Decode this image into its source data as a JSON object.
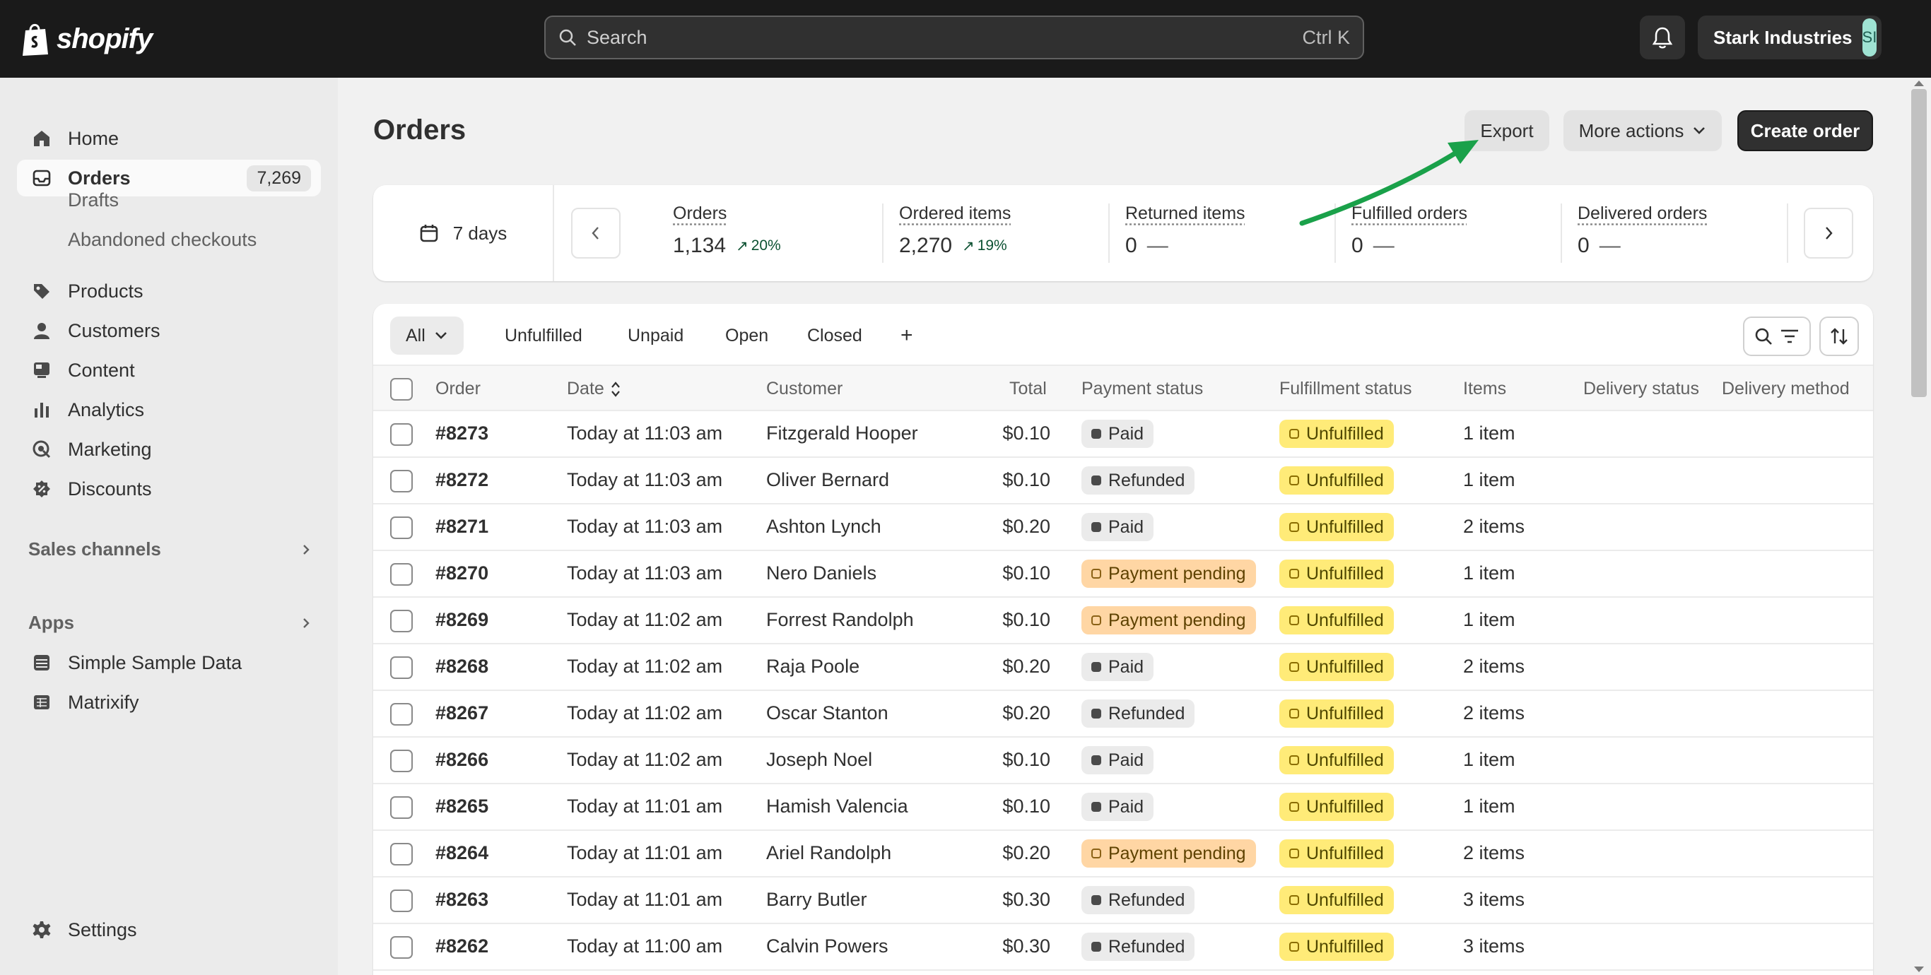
{
  "topbar": {
    "logo_text": "shopify",
    "search_placeholder": "Search",
    "search_shortcut": "Ctrl K",
    "store_name": "Stark Industries",
    "store_initials": "SI"
  },
  "sidebar": {
    "items": [
      {
        "label": "Home",
        "icon": "home-icon"
      },
      {
        "label": "Orders",
        "icon": "inbox-icon",
        "count": "7,269"
      },
      {
        "label": "Products",
        "icon": "tag-icon"
      },
      {
        "label": "Customers",
        "icon": "person-icon"
      },
      {
        "label": "Content",
        "icon": "image-icon"
      },
      {
        "label": "Analytics",
        "icon": "bar-chart-icon"
      },
      {
        "label": "Marketing",
        "icon": "target-icon"
      },
      {
        "label": "Discounts",
        "icon": "discount-icon"
      }
    ],
    "sub_items": [
      "Drafts",
      "Abandoned checkouts"
    ],
    "sales_channels_label": "Sales channels",
    "apps_label": "Apps",
    "apps": [
      {
        "label": "Simple Sample Data",
        "icon": "database-icon"
      },
      {
        "label": "Matrixify",
        "icon": "spreadsheet-icon"
      }
    ],
    "settings_label": "Settings"
  },
  "header": {
    "title": "Orders",
    "export_label": "Export",
    "more_actions_label": "More actions",
    "create_order_label": "Create order"
  },
  "stats": {
    "period": "7 days",
    "items": [
      {
        "title": "Orders",
        "value": "1,134",
        "trend": "20%"
      },
      {
        "title": "Ordered items",
        "value": "2,270",
        "trend": "19%"
      },
      {
        "title": "Returned items",
        "value": "0",
        "trend": "—"
      },
      {
        "title": "Fulfilled orders",
        "value": "0",
        "trend": "—"
      },
      {
        "title": "Delivered orders",
        "value": "0",
        "trend": "—"
      }
    ]
  },
  "filters": {
    "tabs": [
      "All",
      "Unfulfilled",
      "Unpaid",
      "Open",
      "Closed"
    ],
    "add": "+"
  },
  "table": {
    "columns": [
      "Order",
      "Date",
      "Customer",
      "Total",
      "Payment status",
      "Fulfillment status",
      "Items",
      "Delivery status",
      "Delivery method"
    ],
    "rows": [
      {
        "order": "#8273",
        "date": "Today at 11:03 am",
        "customer": "Fitzgerald Hooper",
        "total": "$0.10",
        "payment": "Paid",
        "fulfillment": "Unfulfilled",
        "items": "1 item"
      },
      {
        "order": "#8272",
        "date": "Today at 11:03 am",
        "customer": "Oliver Bernard",
        "total": "$0.10",
        "payment": "Refunded",
        "fulfillment": "Unfulfilled",
        "items": "1 item"
      },
      {
        "order": "#8271",
        "date": "Today at 11:03 am",
        "customer": "Ashton Lynch",
        "total": "$0.20",
        "payment": "Paid",
        "fulfillment": "Unfulfilled",
        "items": "2 items"
      },
      {
        "order": "#8270",
        "date": "Today at 11:03 am",
        "customer": "Nero Daniels",
        "total": "$0.10",
        "payment": "Payment pending",
        "fulfillment": "Unfulfilled",
        "items": "1 item"
      },
      {
        "order": "#8269",
        "date": "Today at 11:02 am",
        "customer": "Forrest Randolph",
        "total": "$0.10",
        "payment": "Payment pending",
        "fulfillment": "Unfulfilled",
        "items": "1 item"
      },
      {
        "order": "#8268",
        "date": "Today at 11:02 am",
        "customer": "Raja Poole",
        "total": "$0.20",
        "payment": "Paid",
        "fulfillment": "Unfulfilled",
        "items": "2 items"
      },
      {
        "order": "#8267",
        "date": "Today at 11:02 am",
        "customer": "Oscar Stanton",
        "total": "$0.20",
        "payment": "Refunded",
        "fulfillment": "Unfulfilled",
        "items": "2 items"
      },
      {
        "order": "#8266",
        "date": "Today at 11:02 am",
        "customer": "Joseph Noel",
        "total": "$0.10",
        "payment": "Paid",
        "fulfillment": "Unfulfilled",
        "items": "1 item"
      },
      {
        "order": "#8265",
        "date": "Today at 11:01 am",
        "customer": "Hamish Valencia",
        "total": "$0.10",
        "payment": "Paid",
        "fulfillment": "Unfulfilled",
        "items": "1 item"
      },
      {
        "order": "#8264",
        "date": "Today at 11:01 am",
        "customer": "Ariel Randolph",
        "total": "$0.20",
        "payment": "Payment pending",
        "fulfillment": "Unfulfilled",
        "items": "2 items"
      },
      {
        "order": "#8263",
        "date": "Today at 11:01 am",
        "customer": "Barry Butler",
        "total": "$0.30",
        "payment": "Refunded",
        "fulfillment": "Unfulfilled",
        "items": "3 items"
      },
      {
        "order": "#8262",
        "date": "Today at 11:00 am",
        "customer": "Calvin Powers",
        "total": "$0.30",
        "payment": "Refunded",
        "fulfillment": "Unfulfilled",
        "items": "3 items"
      }
    ]
  },
  "colors": {
    "topbar": "#1a1a1a",
    "annotation_arrow": "#1aa14a",
    "unfulfilled_badge": "#ffeb78",
    "pending_badge": "#ffd6a4"
  }
}
